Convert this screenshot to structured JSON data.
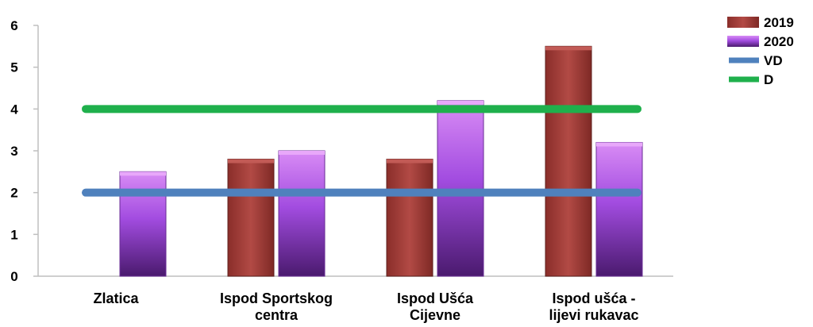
{
  "chart_data": {
    "type": "bar",
    "categories": [
      [
        "Zlatica"
      ],
      [
        "Ispod Sportskog",
        "centra"
      ],
      [
        "Ispod Ušća",
        "Cijevne"
      ],
      [
        "Ispod ušća -",
        "lijevi rukavac"
      ]
    ],
    "series": [
      {
        "name": "2019",
        "values": [
          0,
          2.8,
          2.8,
          5.5
        ],
        "color": "#9b3a36"
      },
      {
        "name": "2020",
        "values": [
          2.5,
          3.0,
          4.2,
          3.2
        ],
        "color": "#9b45d6"
      }
    ],
    "reference_lines": [
      {
        "name": "VD",
        "value": 2,
        "color": "#4f81bd"
      },
      {
        "name": "D",
        "value": 4,
        "color": "#1fb04c"
      }
    ],
    "ylim": [
      0,
      6
    ],
    "yticks": [
      "0",
      "1",
      "2",
      "3",
      "4",
      "5",
      "6"
    ],
    "title": "",
    "xlabel": "",
    "ylabel": "",
    "grid": false,
    "legend_position": "top-right"
  }
}
